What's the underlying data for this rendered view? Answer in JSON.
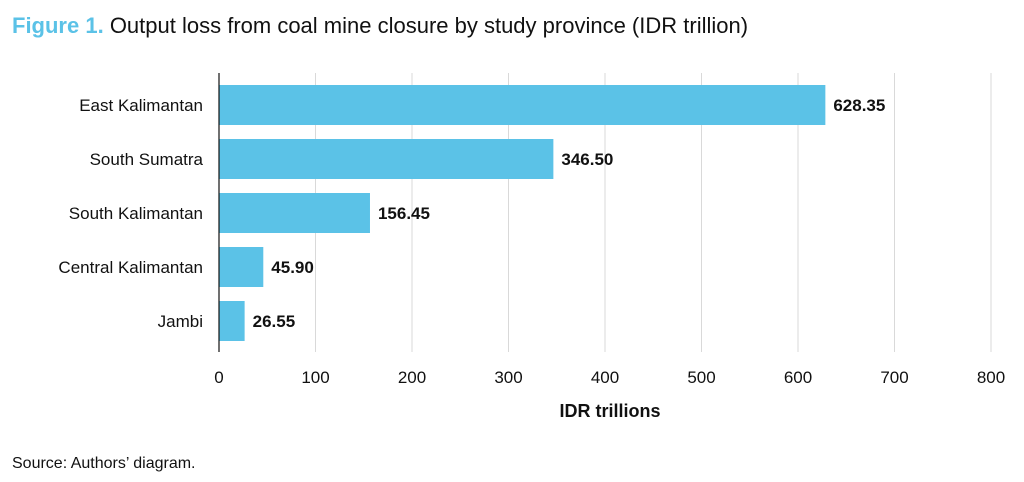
{
  "figure": {
    "label": "Figure 1.",
    "title": "Output loss from coal mine closure by study province (IDR trillion)",
    "source": "Source: Authors’ diagram."
  },
  "colors": {
    "accent": "#5bc2e7",
    "bar": "#5bc2e7",
    "grid": "#d9d9d9",
    "text": "#111111"
  },
  "chart_data": {
    "type": "bar",
    "orientation": "horizontal",
    "categories": [
      "East Kalimantan",
      "South Sumatra",
      "South Kalimantan",
      "Central Kalimantan",
      "Jambi"
    ],
    "values": [
      628.35,
      346.5,
      156.45,
      45.9,
      26.55
    ],
    "value_labels": [
      "628.35",
      "346.50",
      "156.45",
      "45.90",
      "26.55"
    ],
    "title": "Output loss from coal mine closure by study province (IDR trillion)",
    "xlabel": "IDR trillions",
    "ylabel": "",
    "xlim": [
      0,
      800
    ],
    "xticks": [
      0,
      100,
      200,
      300,
      400,
      500,
      600,
      700,
      800
    ],
    "xtick_labels": [
      "0",
      "100",
      "200",
      "300",
      "400",
      "500",
      "600",
      "700",
      "800"
    ],
    "grid": "vertical",
    "legend": "none"
  }
}
